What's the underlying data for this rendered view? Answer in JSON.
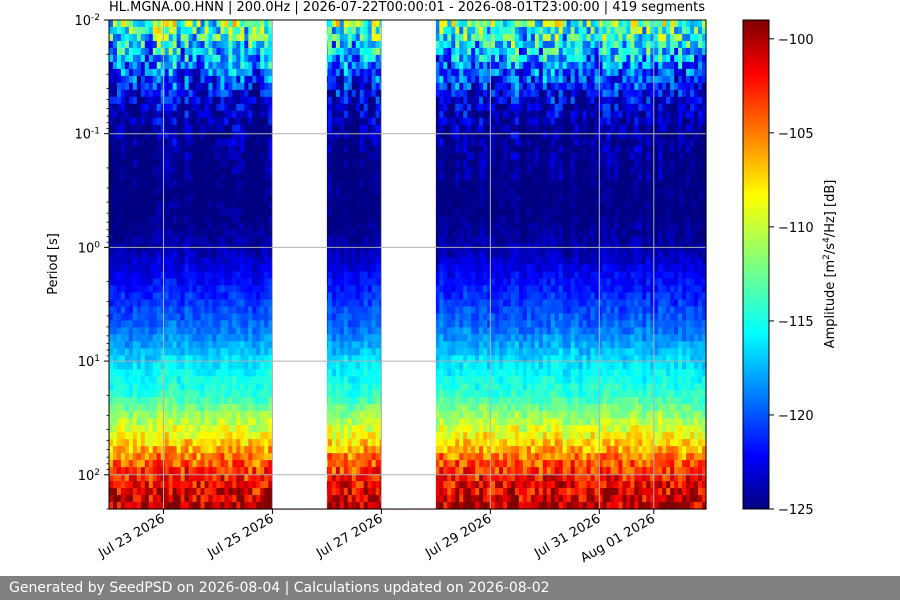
{
  "chart_data": {
    "type": "heatmap",
    "title": "HL.MGNA.00.HNN | 200.0Hz | 2026-07-22T00:00:01 - 2026-08-01T23:00:00 | 419 segments",
    "ylabel": "Period [s]",
    "yscale": "log",
    "ylim": [
      0.01,
      200
    ],
    "ytick_labels": [
      "10^-2",
      "10^-1",
      "10^0",
      "10^1",
      "10^2"
    ],
    "xlim": [
      "2026-07-22T00:00",
      "2026-08-01T23:00"
    ],
    "xtick_labels": [
      "Jul 23 2026",
      "Jul 25 2026",
      "Jul 27 2026",
      "Jul 29 2026",
      "Jul 31 2026",
      "Aug 01 2026"
    ],
    "grid": true,
    "colormap": "jet",
    "colorbar": {
      "label": "Amplitude [m^2/s^4/Hz] [dB]",
      "range": [
        -125,
        -99
      ],
      "ticks": [
        -100,
        -105,
        -110,
        -115,
        -120,
        -125
      ]
    },
    "data_gaps": [
      [
        "2026-07-25T00:00",
        "2026-07-26T00:00"
      ],
      [
        "2026-07-27T00:00",
        "2026-07-28T00:00"
      ]
    ],
    "amplitude_profile": {
      "period_s": [
        0.01,
        0.02,
        0.05,
        0.1,
        0.2,
        0.5,
        1,
        2,
        5,
        10,
        20,
        50,
        100,
        200
      ],
      "amplitude_db": [
        -112,
        -117,
        -123,
        -124.5,
        -125,
        -125,
        -124,
        -121.5,
        -119,
        -116,
        -114,
        -108,
        -103,
        -100
      ]
    }
  },
  "footer": {
    "text": "Generated by SeedPSD on 2026-08-04 | Calculations updated on 2026-08-02"
  }
}
